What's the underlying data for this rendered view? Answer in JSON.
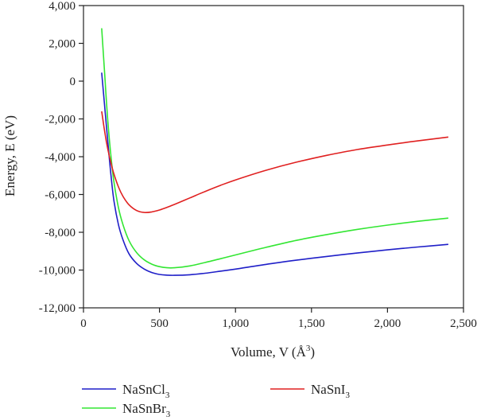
{
  "chart_data": {
    "type": "line",
    "xlabel": "Volume, V (Å",
    "xlabel_sup": "3",
    "xlabel_end": ")",
    "ylabel": "Energy, E (eV)",
    "xlim": [
      0,
      2500
    ],
    "ylim": [
      -12000,
      4000
    ],
    "x_ticks": [
      0,
      500,
      1000,
      1500,
      2000,
      2500
    ],
    "y_ticks": [
      -12000,
      -10000,
      -8000,
      -6000,
      -4000,
      -2000,
      0,
      2000,
      4000
    ],
    "x_tick_labels": [
      "0",
      "500",
      "1,000",
      "1,500",
      "2,000",
      "2,500"
    ],
    "y_tick_labels": [
      "-12,000",
      "-10,000",
      "-8,000",
      "-6,000",
      "-4,000",
      "-2,000",
      "0",
      "2,000",
      "4,000"
    ],
    "grid": false,
    "legend_position": "below-plot",
    "series": [
      {
        "name": "NaSnCl",
        "name_sub": "3",
        "color": "#1f1fc8",
        "x": [
          120,
          140,
          160,
          180,
          200,
          230,
          260,
          300,
          350,
          400,
          450,
          500,
          550,
          600,
          700,
          800,
          900,
          1000,
          1200,
          1400,
          1600,
          1800,
          2000,
          2200,
          2400
        ],
        "y": [
          450,
          -1400,
          -3200,
          -4900,
          -6300,
          -7600,
          -8400,
          -9150,
          -9650,
          -9950,
          -10130,
          -10230,
          -10270,
          -10280,
          -10250,
          -10170,
          -10060,
          -9950,
          -9700,
          -9480,
          -9280,
          -9100,
          -8930,
          -8780,
          -8640
        ]
      },
      {
        "name": "NaSnBr",
        "name_sub": "3",
        "color": "#33e633",
        "x": [
          120,
          140,
          160,
          180,
          200,
          230,
          260,
          300,
          350,
          400,
          450,
          500,
          550,
          600,
          700,
          800,
          900,
          1000,
          1200,
          1400,
          1600,
          1800,
          2000,
          2200,
          2400
        ],
        "y": [
          2800,
          300,
          -2100,
          -3900,
          -5300,
          -6700,
          -7600,
          -8450,
          -9080,
          -9460,
          -9690,
          -9820,
          -9880,
          -9880,
          -9780,
          -9600,
          -9400,
          -9200,
          -8800,
          -8430,
          -8120,
          -7850,
          -7620,
          -7420,
          -7250
        ]
      },
      {
        "name": "NaSnI",
        "name_sub": "3",
        "color": "#e02020",
        "x": [
          120,
          140,
          160,
          180,
          200,
          230,
          260,
          300,
          350,
          400,
          450,
          500,
          550,
          600,
          700,
          800,
          900,
          1000,
          1200,
          1400,
          1600,
          1800,
          2000,
          2200,
          2400
        ],
        "y": [
          -1600,
          -2700,
          -3600,
          -4300,
          -4900,
          -5600,
          -6100,
          -6550,
          -6850,
          -6950,
          -6920,
          -6820,
          -6680,
          -6520,
          -6180,
          -5840,
          -5520,
          -5230,
          -4720,
          -4290,
          -3930,
          -3620,
          -3380,
          -3160,
          -2960
        ]
      }
    ]
  }
}
